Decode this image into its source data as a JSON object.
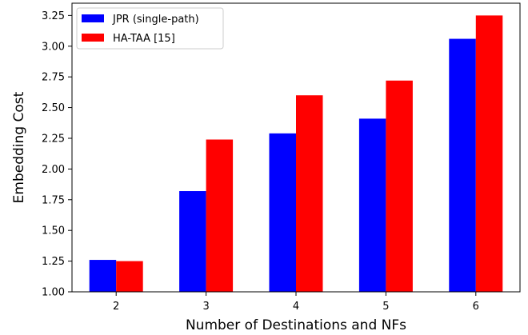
{
  "chart_data": {
    "type": "bar",
    "categories": [
      "2",
      "3",
      "4",
      "5",
      "6"
    ],
    "series": [
      {
        "name": "JPR (single-path)",
        "color": "#0000ff",
        "values": [
          1.26,
          1.82,
          2.29,
          2.41,
          3.06
        ]
      },
      {
        "name": "HA-TAA [15]",
        "color": "#ff0000",
        "values": [
          1.25,
          2.24,
          2.6,
          2.72,
          3.25
        ]
      }
    ],
    "xlabel": "Number of Destinations and NFs",
    "ylabel": "Embedding Cost",
    "ylim": [
      1.0,
      3.35
    ],
    "yticks": [
      1.0,
      1.25,
      1.5,
      1.75,
      2.0,
      2.25,
      2.5,
      2.75,
      3.0,
      3.25
    ],
    "ytick_labels": [
      "1.00",
      "1.25",
      "1.50",
      "1.75",
      "2.00",
      "2.25",
      "2.50",
      "2.75",
      "3.00",
      "3.25"
    ],
    "legend_position": "top-left",
    "grid": false
  }
}
